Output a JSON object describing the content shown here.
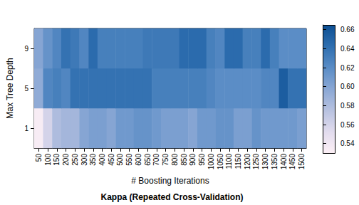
{
  "chart_data": {
    "type": "heatmap",
    "title": "Kappa (Repeated Cross-Validation)",
    "x_label": "# Boosting Iterations",
    "y_label": "Max Tree Depth",
    "x": [
      50,
      100,
      150,
      200,
      250,
      300,
      350,
      400,
      450,
      500,
      550,
      600,
      650,
      700,
      750,
      800,
      850,
      900,
      950,
      1000,
      1050,
      1100,
      1150,
      1200,
      1250,
      1300,
      1350,
      1400,
      1450,
      1500
    ],
    "y": [
      1,
      5,
      9
    ],
    "values": [
      [
        0.535,
        0.56,
        0.58,
        0.585,
        0.585,
        0.6,
        0.605,
        0.605,
        0.6,
        0.61,
        0.61,
        0.615,
        0.615,
        0.61,
        0.605,
        0.605,
        0.605,
        0.6,
        0.61,
        0.61,
        0.615,
        0.615,
        0.605,
        0.605,
        0.615,
        0.61,
        0.61,
        0.61,
        0.61,
        0.605
      ],
      [
        0.595,
        0.625,
        0.63,
        0.625,
        0.64,
        0.64,
        0.64,
        0.64,
        0.64,
        0.64,
        0.64,
        0.64,
        0.64,
        0.63,
        0.63,
        0.63,
        0.63,
        0.63,
        0.63,
        0.625,
        0.62,
        0.62,
        0.62,
        0.62,
        0.62,
        0.625,
        0.625,
        0.655,
        0.64,
        0.64
      ],
      [
        0.6,
        0.615,
        0.625,
        0.64,
        0.635,
        0.625,
        0.645,
        0.63,
        0.63,
        0.63,
        0.63,
        0.63,
        0.635,
        0.635,
        0.635,
        0.635,
        0.645,
        0.645,
        0.645,
        0.63,
        0.625,
        0.645,
        0.645,
        0.63,
        0.63,
        0.645,
        0.63,
        0.62,
        0.62,
        0.62
      ]
    ],
    "colorbar": {
      "range": [
        0.53,
        0.665
      ],
      "ticks": [
        0.54,
        0.56,
        0.58,
        {
          "value": 0.6,
          "label": "0.60"
        },
        0.62,
        0.64,
        0.66
      ],
      "colors": [
        "#fdf0f6",
        "#e2dcee",
        "#b8c2e0",
        "#8ba8d5",
        "#5b8dc6",
        "#2f6fb0",
        "#0d4f93"
      ]
    }
  }
}
